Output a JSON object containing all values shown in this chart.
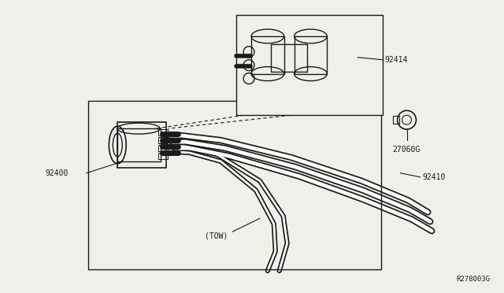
{
  "bg_color": "#ffffff",
  "line_color": "#1a1a1a",
  "ref_code": "R278003G",
  "fig_w": 6.4,
  "fig_h": 3.72,
  "dpi": 100
}
